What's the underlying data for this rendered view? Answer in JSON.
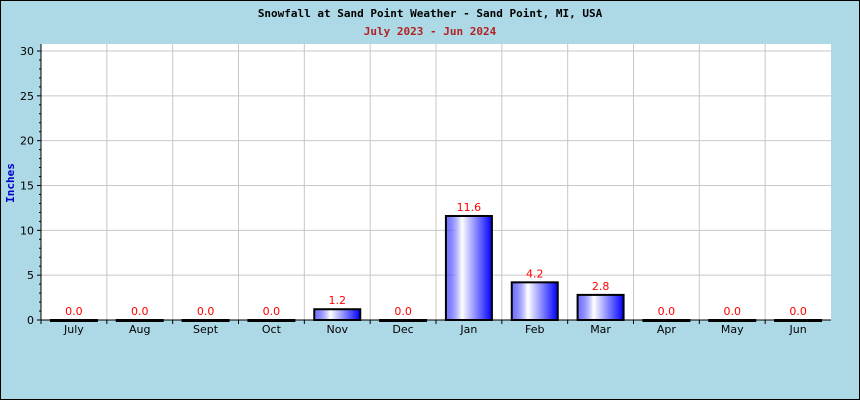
{
  "chart_data": {
    "type": "bar",
    "title": "Snowfall at Sand Point Weather - Sand Point, MI, USA",
    "subtitle": "July 2023 - Jun 2024",
    "xlabel": "",
    "ylabel": "Inches",
    "categories": [
      "July",
      "Aug",
      "Sept",
      "Oct",
      "Nov",
      "Dec",
      "Jan",
      "Feb",
      "Mar",
      "Apr",
      "May",
      "Jun"
    ],
    "values": [
      0.0,
      0.0,
      0.0,
      0.0,
      1.2,
      0.0,
      11.6,
      4.2,
      2.8,
      0.0,
      0.0,
      0.0
    ],
    "data_labels": [
      "0.0",
      "0.0",
      "0.0",
      "0.0",
      "1.2",
      "0.0",
      "11.6",
      "4.2",
      "2.8",
      "0.0",
      "0.0",
      "0.0"
    ],
    "ylim": [
      0,
      30
    ],
    "yticks": [
      0,
      5,
      10,
      15,
      20,
      25,
      30
    ],
    "grid": true,
    "colors": {
      "bar": "#0000ff",
      "bar_highlight": "#ffffff",
      "label": "#ff0000",
      "subtitle": "#b22222",
      "ylabel": "#0000cd",
      "background": "#add8e6"
    }
  }
}
